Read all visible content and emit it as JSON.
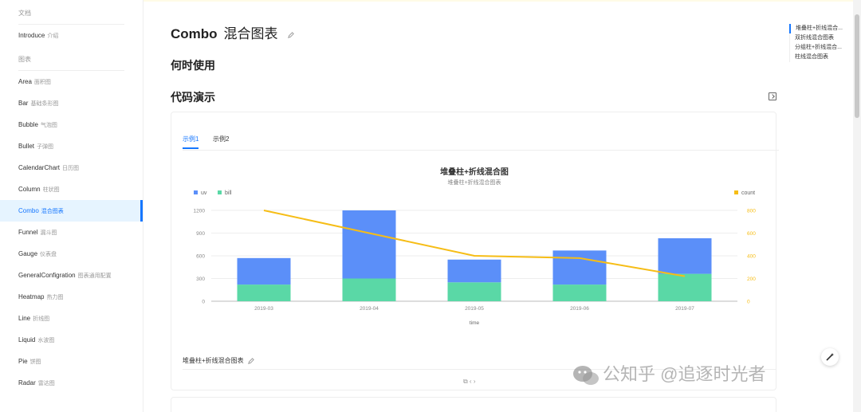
{
  "sidebar": {
    "groups": {
      "docs": "文档",
      "charts": "图表"
    },
    "doc_items": [
      {
        "label": "Introduce",
        "sub": "介绍"
      }
    ],
    "chart_items": [
      {
        "label": "Area",
        "sub": "面积图"
      },
      {
        "label": "Bar",
        "sub": "基础条形图"
      },
      {
        "label": "Bubble",
        "sub": "气泡图"
      },
      {
        "label": "Bullet",
        "sub": "子弹图"
      },
      {
        "label": "CalendarChart",
        "sub": "日历图"
      },
      {
        "label": "Column",
        "sub": "柱状图"
      },
      {
        "label": "Combo",
        "sub": "混合图表"
      },
      {
        "label": "Funnel",
        "sub": "漏斗图"
      },
      {
        "label": "Gauge",
        "sub": "仪表盘"
      },
      {
        "label": "GeneralConfigration",
        "sub": "图表通用配置"
      },
      {
        "label": "Heatmap",
        "sub": "热力图"
      },
      {
        "label": "Line",
        "sub": "折线图"
      },
      {
        "label": "Liquid",
        "sub": "水波图"
      },
      {
        "label": "Pie",
        "sub": "饼图"
      },
      {
        "label": "Radar",
        "sub": "雷达图"
      }
    ]
  },
  "page": {
    "title": "Combo",
    "title_cn": "混合图表",
    "when_to_use": "何时使用",
    "demo_heading": "代码演示"
  },
  "tabs": [
    "示例1",
    "示例2"
  ],
  "demo": {
    "description": "堆叠柱+折线混合图表",
    "actions": "⧉  ‹ ›"
  },
  "anchor": [
    "堆叠柱+折线混合...",
    "双折线混合图表",
    "分组柱+折线混合...",
    "柱线混合图表"
  ],
  "watermark": "公知乎 @追逐时光者",
  "colors": {
    "uv": "#5b8ff9",
    "bill": "#5ad8a6",
    "count": "#f6bd16",
    "accent": "#1677ff"
  },
  "chart_data": {
    "type": "bar",
    "stacked": true,
    "title": "堆叠柱+折线混合图",
    "subtitle": "堆叠柱+折线混合图表",
    "xlabel": "time",
    "categories": [
      "2019-03",
      "2019-04",
      "2019-05",
      "2019-06",
      "2019-07"
    ],
    "series": [
      {
        "name": "uv",
        "type": "bar",
        "axis": "left",
        "values": [
          350,
          900,
          300,
          450,
          470
        ]
      },
      {
        "name": "bill",
        "type": "bar",
        "axis": "left",
        "values": [
          220,
          300,
          250,
          220,
          362
        ]
      },
      {
        "name": "count",
        "type": "line",
        "axis": "right",
        "values": [
          800,
          600,
          400,
          380,
          220
        ]
      }
    ],
    "y_left": {
      "ticks": [
        "0",
        "300",
        "600",
        "900",
        "1200"
      ],
      "range": [
        0,
        1200
      ]
    },
    "y_right": {
      "ticks": [
        "0",
        "200",
        "400",
        "600",
        "800"
      ],
      "range": [
        0,
        800
      ]
    },
    "legend_left": [
      "uv",
      "bill"
    ],
    "legend_right": [
      "count"
    ],
    "grid": true
  }
}
